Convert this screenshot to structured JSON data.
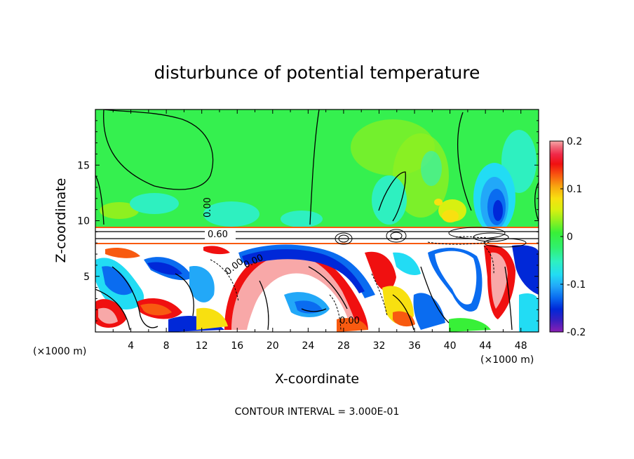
{
  "chart_data": {
    "type": "heatmap",
    "title": "disturbunce of potential temperature",
    "xlabel": "X-coordinate",
    "ylabel": "Z-coordinate",
    "x_unit": "(×1000 m)",
    "y_unit": "(×1000 m)",
    "xlim": [
      0,
      50
    ],
    "ylim": [
      0,
      20
    ],
    "x_ticks": [
      "4",
      "8",
      "12",
      "16",
      "20",
      "24",
      "28",
      "32",
      "36",
      "40",
      "44",
      "48"
    ],
    "y_ticks": [
      "5",
      "10",
      "15"
    ],
    "colorbar": {
      "range": [
        -0.2,
        0.2
      ],
      "tick_labels": [
        "0.2",
        "0.1",
        "0",
        "-0.1",
        "-0.2"
      ],
      "colors": [
        "#8a1fb4",
        "#3a1fc0",
        "#0028d8",
        "#0a6cf0",
        "#22a8f8",
        "#22dcf4",
        "#2ef0c0",
        "#30f070",
        "#38f038",
        "#8ef020",
        "#d8f010",
        "#f8e010",
        "#f8a810",
        "#f85a10",
        "#f01010",
        "#f02848",
        "#f06a7a",
        "#f8a8a8"
      ]
    },
    "contour_labels": [
      "0.00",
      "0.60",
      "0.00",
      "0.00",
      "0.00"
    ],
    "contour_interval_note": "CONTOUR INTERVAL = 3.000E-01"
  }
}
